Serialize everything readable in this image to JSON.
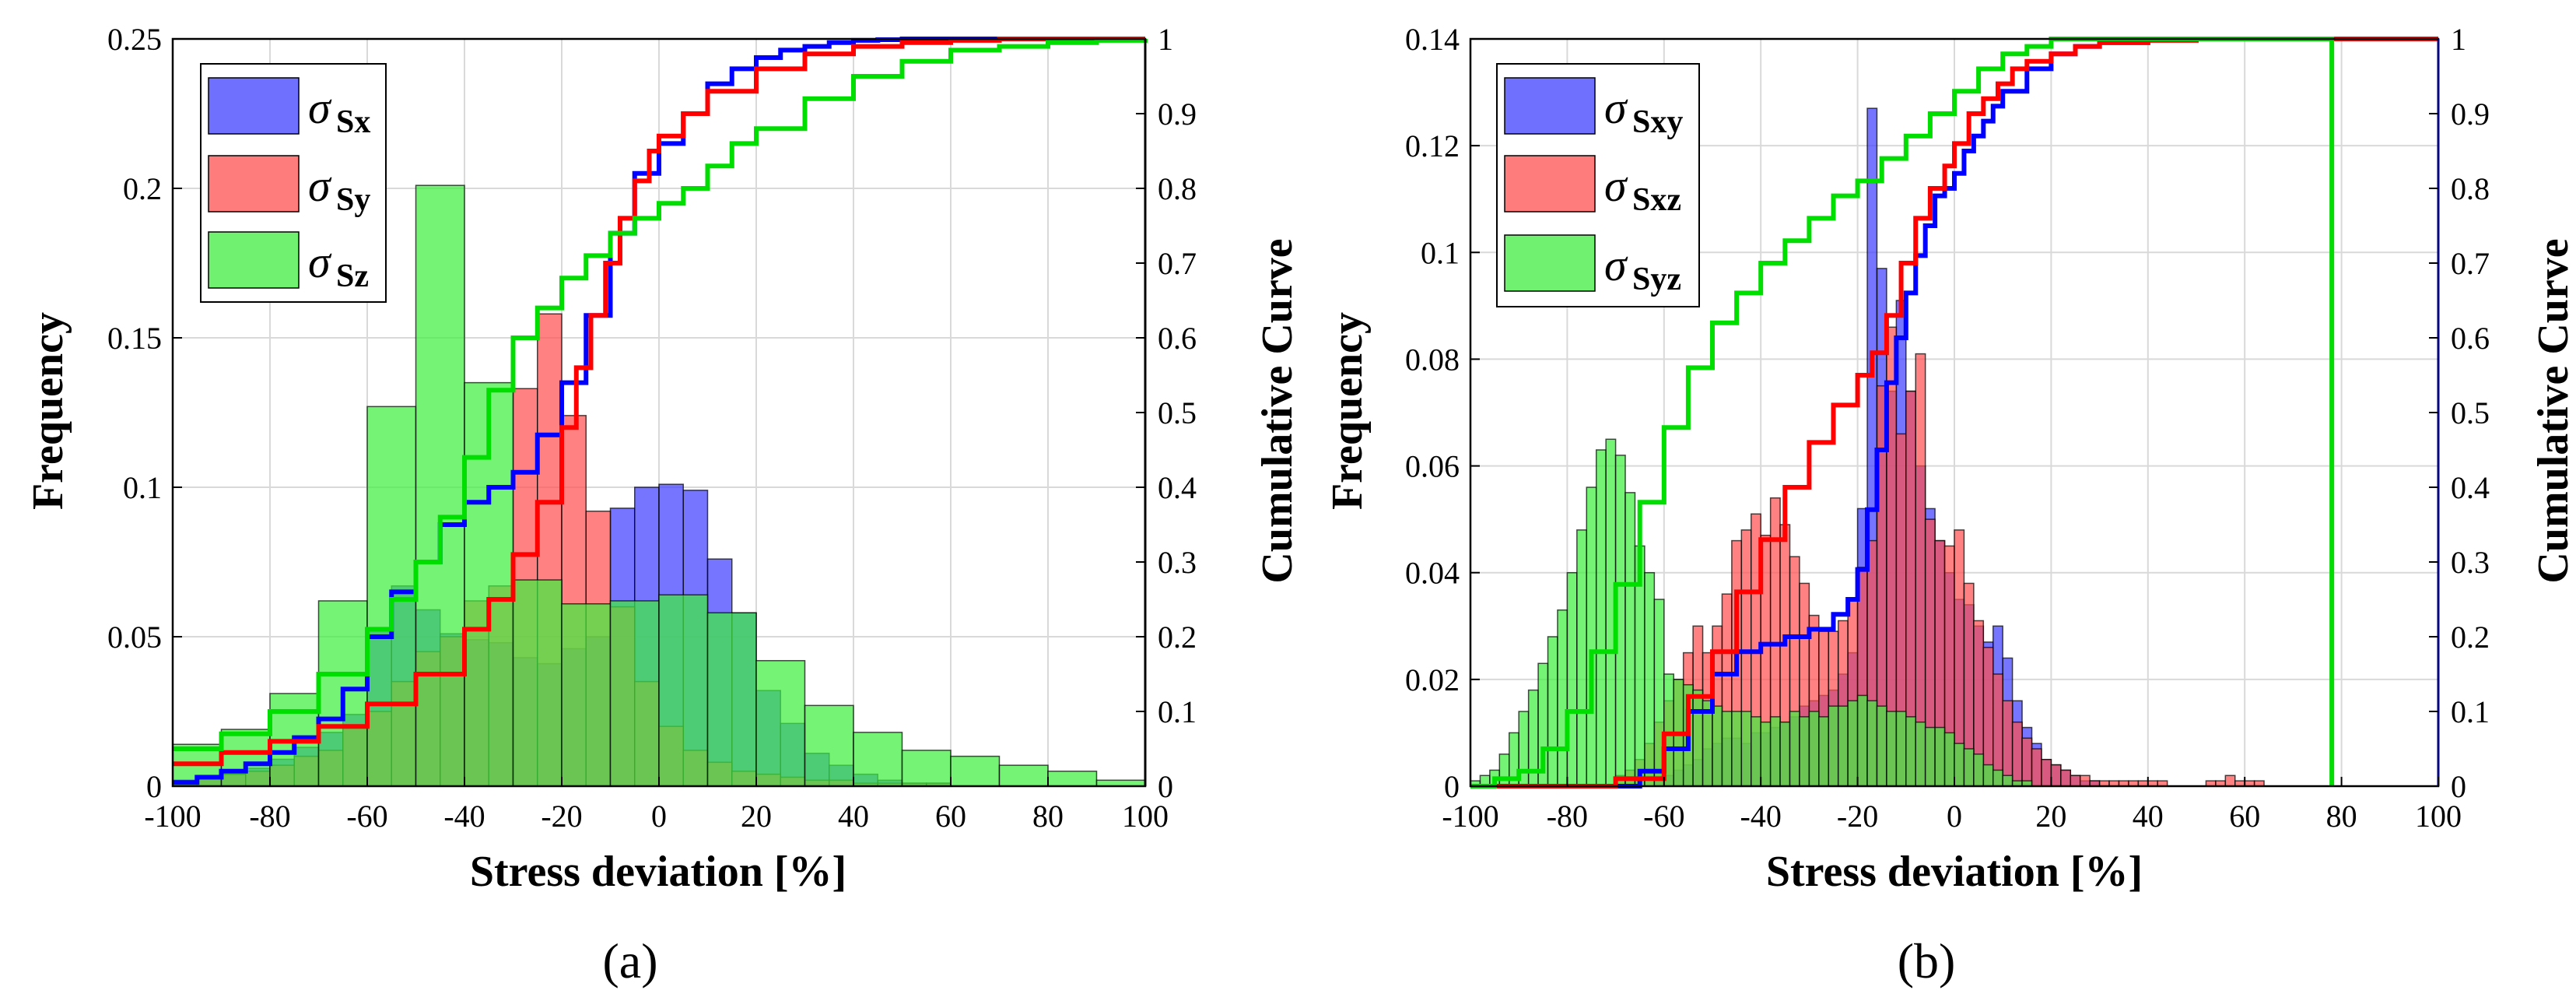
{
  "colors": {
    "blue": "#0000ff",
    "red": "#ff0000",
    "green": "#00dd00",
    "blue_fill": "#4040ff",
    "red_fill": "#ff5050",
    "green_fill": "#40ee40",
    "grid": "#d9d9d9"
  },
  "chart_data": [
    {
      "type": "bar",
      "panel_label": "(a)",
      "xlabel": "Stress deviation [%]",
      "ylabel": "Frequency",
      "y2label": "Cumulative Curve",
      "xlim": [
        -100,
        100
      ],
      "ylim": [
        0,
        0.25
      ],
      "y2lim": [
        0,
        1
      ],
      "xticks": [
        "-100",
        "-80",
        "-60",
        "-40",
        "-20",
        "0",
        "20",
        "40",
        "60",
        "80",
        "100"
      ],
      "yticks": [
        "0",
        "0.05",
        "0.1",
        "0.15",
        "0.2",
        "0.25"
      ],
      "y2ticks": [
        "0",
        "0.1",
        "0.2",
        "0.3",
        "0.4",
        "0.5",
        "0.6",
        "0.7",
        "0.8",
        "0.9",
        "1"
      ],
      "grid": true,
      "legend_position": "top-left",
      "series": [
        {
          "name": "σSx",
          "symbol": "σ",
          "sub": "Sx",
          "color_key": "blue",
          "bin_edges": [
            -100,
            -95,
            -90,
            -85,
            -80,
            -75,
            -70,
            -65,
            -60,
            -55,
            -50,
            -45,
            -40,
            -35,
            -30,
            -25,
            -20,
            -15,
            -10,
            -5,
            0,
            5,
            10,
            15,
            20,
            25,
            30,
            35,
            40,
            45,
            50,
            55,
            60
          ],
          "values": [
            0.002,
            0.003,
            0.004,
            0.006,
            0.009,
            0.013,
            0.018,
            0.024,
            0.052,
            0.067,
            0.059,
            0.051,
            0.049,
            0.048,
            0.043,
            0.041,
            0.046,
            0.05,
            0.093,
            0.1,
            0.101,
            0.099,
            0.076,
            0.058,
            0.032,
            0.021,
            0.011,
            0.007,
            0.004,
            0.002,
            0.001,
            0.001
          ],
          "cumulative": [
            0.005,
            0.012,
            0.02,
            0.03,
            0.045,
            0.065,
            0.09,
            0.13,
            0.2,
            0.26,
            0.3,
            0.35,
            0.38,
            0.4,
            0.42,
            0.47,
            0.54,
            0.63,
            0.74,
            0.82,
            0.86,
            0.9,
            0.94,
            0.96,
            0.975,
            0.985,
            0.99,
            0.995,
            0.998,
            0.999,
            1.0,
            1.0
          ]
        },
        {
          "name": "σSy",
          "symbol": "σ",
          "sub": "Sy",
          "color_key": "red",
          "bin_edges": [
            -100,
            -95,
            -90,
            -85,
            -80,
            -75,
            -70,
            -65,
            -60,
            -55,
            -50,
            -45,
            -40,
            -35,
            -30,
            -25,
            -20,
            -15,
            -10,
            -5,
            0,
            5,
            10,
            15,
            20,
            25,
            30,
            35,
            40,
            45,
            50,
            55,
            60
          ],
          "values": [
            0.002,
            0.003,
            0.004,
            0.005,
            0.007,
            0.01,
            0.012,
            0.02,
            0.025,
            0.035,
            0.045,
            0.05,
            0.062,
            0.067,
            0.133,
            0.158,
            0.124,
            0.092,
            0.06,
            0.035,
            0.02,
            0.012,
            0.008,
            0.005,
            0.004,
            0.003,
            0.002,
            0.002,
            0.001,
            0.001,
            0.001,
            0.001
          ],
          "cumulative_x": [
            -100,
            -90,
            -80,
            -70,
            -60,
            -50,
            -40,
            -35,
            -30,
            -25,
            -20,
            -17,
            -14,
            -11,
            -8,
            -5,
            -2,
            0,
            5,
            10,
            20,
            30,
            40,
            50,
            60,
            70,
            80,
            90,
            100
          ],
          "cumulative_y": [
            0.03,
            0.045,
            0.06,
            0.08,
            0.11,
            0.15,
            0.21,
            0.25,
            0.31,
            0.38,
            0.48,
            0.56,
            0.63,
            0.7,
            0.76,
            0.81,
            0.85,
            0.87,
            0.9,
            0.93,
            0.96,
            0.98,
            0.99,
            0.995,
            0.998,
            1.0,
            1.0,
            1.0,
            1.0
          ]
        },
        {
          "name": "σSz",
          "symbol": "σ",
          "sub": "Sz",
          "color_key": "green",
          "bin_edges": [
            -100,
            -90,
            -80,
            -70,
            -60,
            -50,
            -40,
            -30,
            -20,
            -10,
            0,
            10,
            20,
            30,
            40,
            50,
            60,
            70,
            80,
            90,
            100
          ],
          "values": [
            0.014,
            0.019,
            0.031,
            0.062,
            0.127,
            0.201,
            0.135,
            0.069,
            0.061,
            0.062,
            0.064,
            0.058,
            0.042,
            0.027,
            0.018,
            0.012,
            0.01,
            0.007,
            0.005,
            0.002
          ],
          "cumulative_x": [
            -100,
            -90,
            -80,
            -70,
            -60,
            -55,
            -50,
            -45,
            -40,
            -35,
            -30,
            -25,
            -20,
            -15,
            -10,
            -5,
            0,
            5,
            10,
            15,
            20,
            30,
            40,
            50,
            60,
            70,
            80,
            90,
            100
          ],
          "cumulative_y": [
            0.05,
            0.07,
            0.1,
            0.15,
            0.21,
            0.25,
            0.3,
            0.36,
            0.44,
            0.53,
            0.6,
            0.64,
            0.68,
            0.71,
            0.74,
            0.76,
            0.78,
            0.8,
            0.83,
            0.86,
            0.88,
            0.92,
            0.95,
            0.97,
            0.985,
            0.99,
            0.995,
            0.998,
            1.0
          ]
        }
      ]
    },
    {
      "type": "bar",
      "panel_label": "(b)",
      "xlabel": "Stress deviation [%]",
      "ylabel": "Frequency",
      "y2label": "Cumulative Curve",
      "xlim": [
        -100,
        100
      ],
      "ylim": [
        0,
        0.14
      ],
      "y2lim": [
        0,
        1
      ],
      "xticks": [
        "-100",
        "-80",
        "-60",
        "-40",
        "-20",
        "0",
        "20",
        "40",
        "60",
        "80",
        "100"
      ],
      "yticks": [
        "0",
        "0.02",
        "0.04",
        "0.06",
        "0.08",
        "0.1",
        "0.12",
        "0.14"
      ],
      "y2ticks": [
        "0",
        "0.1",
        "0.2",
        "0.3",
        "0.4",
        "0.5",
        "0.6",
        "0.7",
        "0.8",
        "0.9",
        "1"
      ],
      "grid": true,
      "legend_position": "top-left",
      "series": [
        {
          "name": "σSxy",
          "symbol": "σ",
          "sub": "Sxy",
          "color_key": "blue",
          "bin_start": -70,
          "bin_width": 2,
          "values": [
            0.0,
            0.0,
            0.0,
            0.0,
            0.001,
            0.002,
            0.003,
            0.004,
            0.005,
            0.007,
            0.008,
            0.009,
            0.009,
            0.008,
            0.01,
            0.01,
            0.011,
            0.012,
            0.013,
            0.015,
            0.016,
            0.017,
            0.018,
            0.021,
            0.025,
            0.052,
            0.127,
            0.097,
            0.074,
            0.091,
            0.074,
            0.06,
            0.052,
            0.046,
            0.04,
            0.035,
            0.034,
            0.03,
            0.027,
            0.03,
            0.024,
            0.016,
            0.011,
            0.008,
            0.005,
            0.004,
            0.003,
            0.002,
            0.001,
            0.001
          ],
          "cumulative_x": [
            -100,
            -70,
            -65,
            -60,
            -55,
            -50,
            -45,
            -40,
            -35,
            -30,
            -25,
            -22,
            -20,
            -18,
            -16,
            -14,
            -12,
            -10,
            -8,
            -6,
            -4,
            -2,
            0,
            2,
            4,
            6,
            8,
            10,
            15,
            20,
            25,
            30,
            40,
            50,
            60,
            70,
            80,
            90,
            100
          ],
          "cumulative_y": [
            0.0,
            0.0,
            0.02,
            0.05,
            0.1,
            0.15,
            0.18,
            0.19,
            0.2,
            0.21,
            0.23,
            0.25,
            0.29,
            0.37,
            0.45,
            0.54,
            0.6,
            0.66,
            0.71,
            0.75,
            0.79,
            0.8,
            0.82,
            0.85,
            0.87,
            0.89,
            0.91,
            0.93,
            0.96,
            0.98,
            0.99,
            0.995,
            0.999,
            1.0,
            1.0,
            1.0,
            1.0,
            1.0,
            1.0
          ]
        },
        {
          "name": "σSxz",
          "symbol": "σ",
          "sub": "Sxz",
          "color_key": "red",
          "bin_start": -70,
          "bin_width": 2,
          "values": [
            0.002,
            0.003,
            0.005,
            0.008,
            0.012,
            0.016,
            0.02,
            0.025,
            0.03,
            0.025,
            0.03,
            0.036,
            0.046,
            0.048,
            0.051,
            0.047,
            0.054,
            0.049,
            0.043,
            0.038,
            0.032,
            0.029,
            0.029,
            0.031,
            0.035,
            0.041,
            0.046,
            0.075,
            0.086,
            0.066,
            0.074,
            0.081,
            0.05,
            0.046,
            0.045,
            0.048,
            0.038,
            0.031,
            0.026,
            0.021,
            0.016,
            0.012,
            0.009,
            0.007,
            0.005,
            0.004,
            0.003,
            0.002,
            0.002,
            0.001,
            0.001,
            0.001,
            0.001,
            0.001,
            0.001,
            0.001,
            0.001,
            0.0,
            0.0,
            0.0,
            0.0,
            0.001,
            0.001,
            0.002,
            0.001,
            0.001,
            0.001,
            0.0,
            0.0,
            0.0
          ],
          "cumulative_x": [
            -100,
            -80,
            -70,
            -60,
            -55,
            -50,
            -45,
            -40,
            -35,
            -30,
            -25,
            -20,
            -17,
            -14,
            -11,
            -8,
            -5,
            -2,
            0,
            3,
            6,
            9,
            12,
            15,
            20,
            25,
            30,
            40,
            50,
            60,
            70,
            80,
            90,
            100
          ],
          "cumulative_y": [
            0.0,
            0.0,
            0.01,
            0.07,
            0.12,
            0.18,
            0.26,
            0.33,
            0.4,
            0.46,
            0.51,
            0.55,
            0.58,
            0.63,
            0.7,
            0.76,
            0.8,
            0.83,
            0.86,
            0.9,
            0.92,
            0.94,
            0.96,
            0.97,
            0.98,
            0.99,
            0.995,
            0.998,
            1.0,
            1.0,
            1.0,
            1.0,
            1.0,
            1.0
          ]
        },
        {
          "name": "σSyz",
          "symbol": "σ",
          "sub": "Syz",
          "color_key": "green",
          "bin_start": -100,
          "bin_width": 2,
          "values": [
            0.001,
            0.002,
            0.003,
            0.006,
            0.01,
            0.014,
            0.018,
            0.023,
            0.028,
            0.033,
            0.04,
            0.048,
            0.056,
            0.063,
            0.065,
            0.062,
            0.055,
            0.045,
            0.04,
            0.035,
            0.021,
            0.02,
            0.019,
            0.018,
            0.016,
            0.015,
            0.014,
            0.014,
            0.014,
            0.013,
            0.012,
            0.013,
            0.012,
            0.014,
            0.013,
            0.014,
            0.013,
            0.015,
            0.015,
            0.016,
            0.017,
            0.016,
            0.015,
            0.014,
            0.014,
            0.013,
            0.012,
            0.011,
            0.011,
            0.01,
            0.008,
            0.007,
            0.006,
            0.004,
            0.003,
            0.002,
            0.001,
            0.001,
            0.0,
            0.0
          ],
          "cumulative_x": [
            -100,
            -95,
            -90,
            -85,
            -80,
            -75,
            -70,
            -65,
            -60,
            -55,
            -50,
            -45,
            -40,
            -35,
            -30,
            -25,
            -20,
            -15,
            -10,
            -5,
            0,
            5,
            10,
            15,
            20,
            78,
            78
          ],
          "cumulative_y": [
            0.0,
            0.01,
            0.02,
            0.05,
            0.1,
            0.18,
            0.27,
            0.38,
            0.48,
            0.56,
            0.62,
            0.66,
            0.7,
            0.73,
            0.76,
            0.79,
            0.81,
            0.84,
            0.87,
            0.9,
            0.93,
            0.96,
            0.98,
            0.99,
            1.0,
            1.0,
            0.0
          ]
        }
      ]
    }
  ]
}
